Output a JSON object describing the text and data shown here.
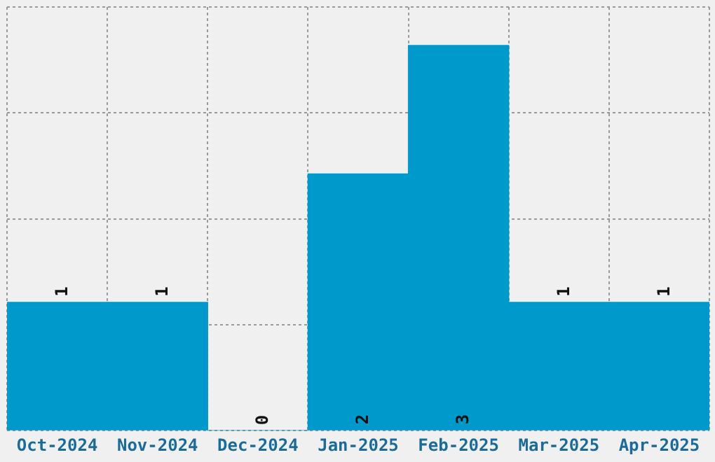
{
  "chart_data": {
    "type": "bar",
    "categories": [
      "Oct-2024",
      "Nov-2024",
      "Dec-2024",
      "Jan-2025",
      "Feb-2025",
      "Mar-2025",
      "Apr-2025"
    ],
    "values": [
      1,
      1,
      0,
      2,
      3,
      1,
      1
    ],
    "color": "#0099cc",
    "data_labels": true,
    "grid": true,
    "tick_labels": "x",
    "ylim": [
      0,
      3.3
    ],
    "yticks": [
      {
        "value": 0,
        "label": null
      },
      {
        "value": 0.825,
        "label": null
      },
      {
        "value": 1.65,
        "label": null
      },
      {
        "value": 2.475,
        "label": null
      },
      {
        "value": 3.3,
        "label": null
      }
    ]
  }
}
